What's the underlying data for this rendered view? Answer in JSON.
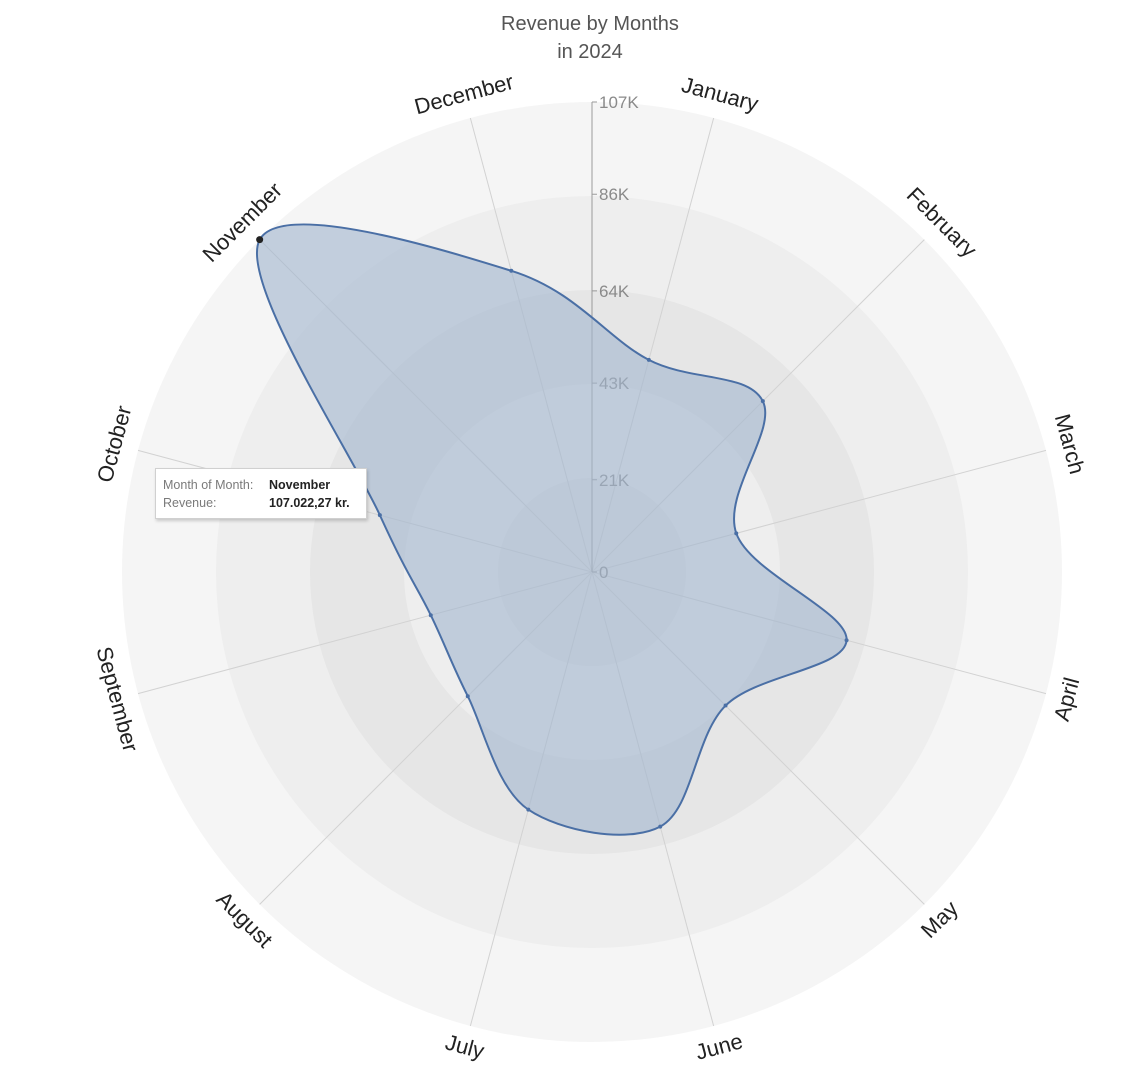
{
  "chart_data": {
    "type": "radar",
    "title": [
      "Revenue by Months",
      "in 2024"
    ],
    "categories": [
      "January",
      "February",
      "March",
      "April",
      "May",
      "June",
      "July",
      "August",
      "September",
      "October",
      "November",
      "December"
    ],
    "series": [
      {
        "values": [
          50000,
          55000,
          34000,
          60000,
          43000,
          60000,
          56000,
          40000,
          38000,
          50000,
          107022.27,
          71000
        ]
      }
    ],
    "axis": {
      "min": 0,
      "max": 107000,
      "ticks": [
        0,
        21000,
        43000,
        64000,
        86000,
        107000
      ],
      "tick_labels": [
        "0",
        "21K",
        "43K",
        "64K",
        "86K",
        "107K"
      ]
    },
    "colors": {
      "fill": "#a3b6cf",
      "line": "#4a6fa5",
      "rings": [
        "#f5f5f5",
        "#eeeeee",
        "#e6e6e6",
        "#eeeeee",
        "#e6e6e6"
      ]
    },
    "tooltip": {
      "rows": [
        {
          "key": "Month of Month:",
          "value": "November"
        },
        {
          "key": "Revenue:",
          "value": "107.022,27 kr."
        }
      ]
    }
  }
}
